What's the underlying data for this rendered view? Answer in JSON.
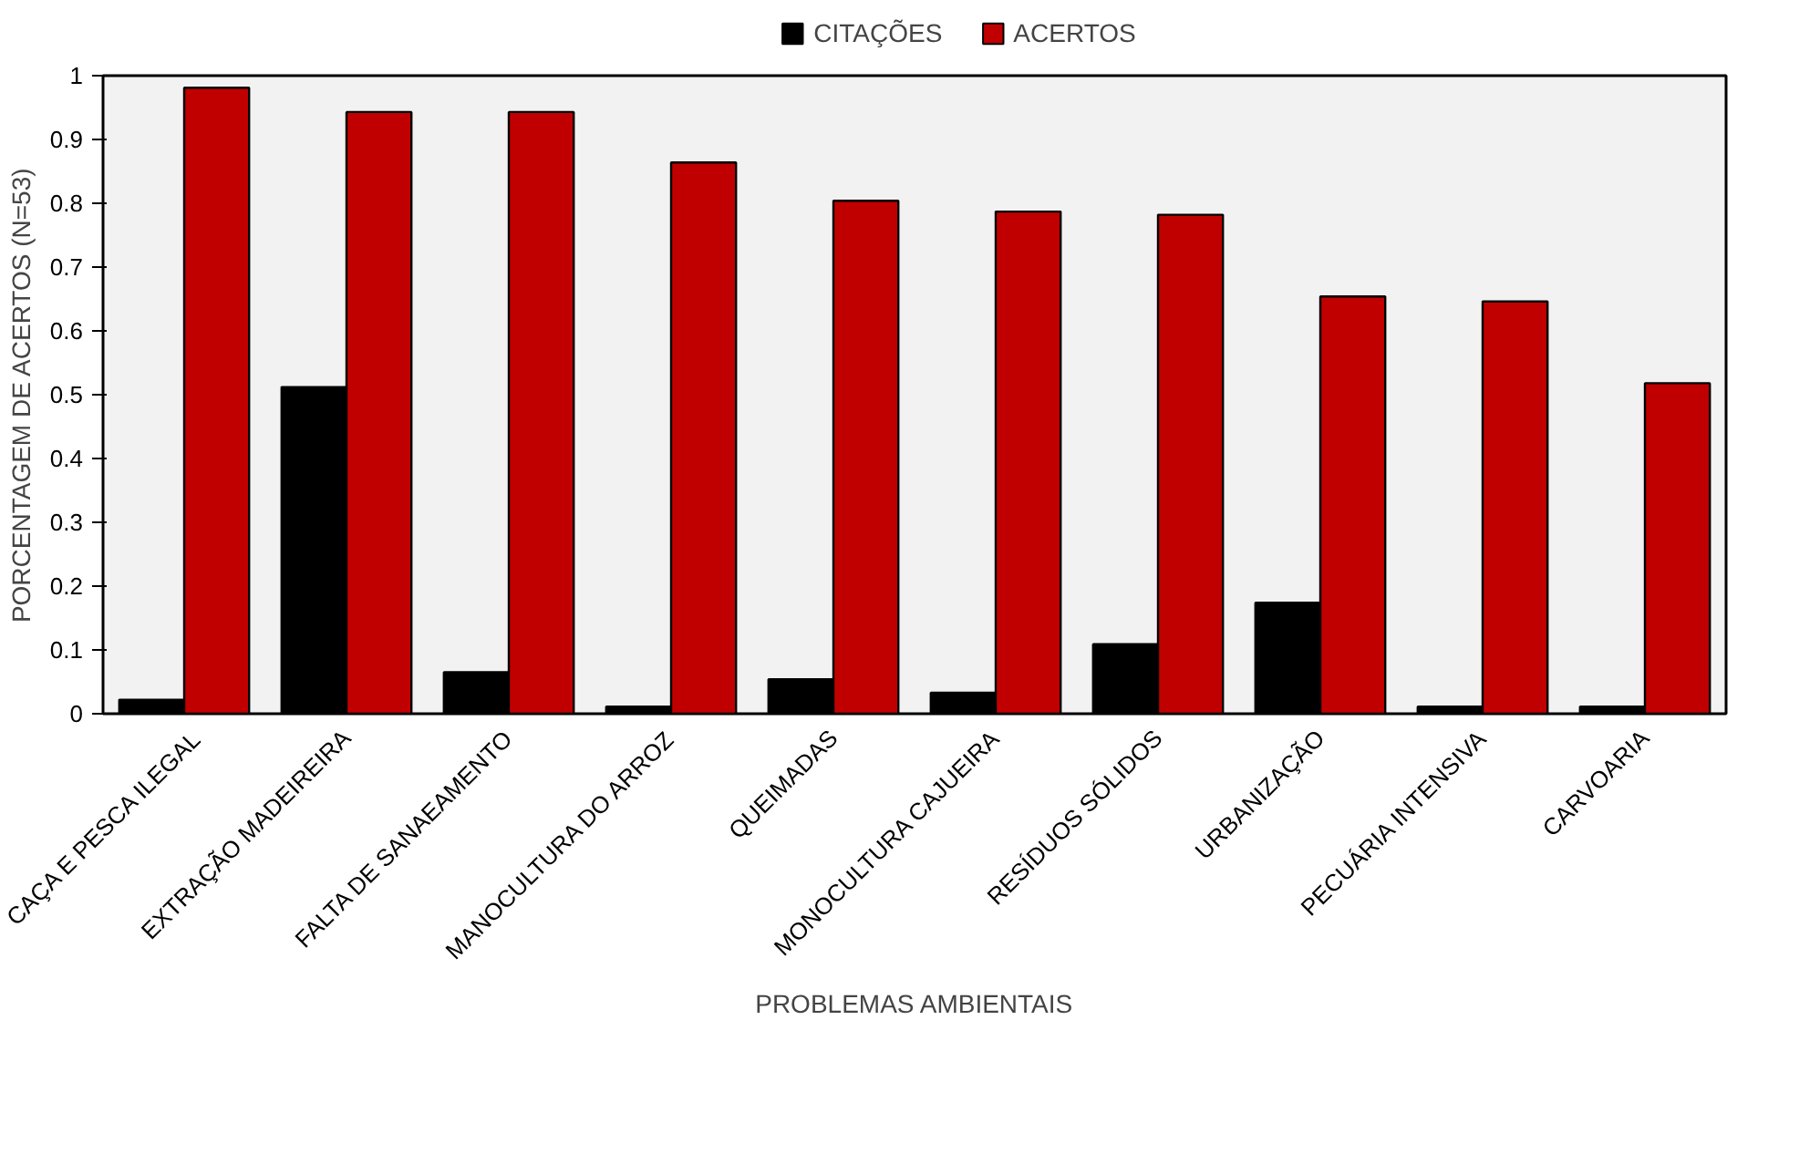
{
  "chart_data": {
    "type": "bar",
    "xlabel": "PROBLEMAS AMBIENTAIS",
    "ylabel": "PORCENTAGEM DE ACERTOS (N=53)",
    "categories": [
      "CAÇA E PESCA ILEGAL",
      "EXTRAÇÃO MADEIREIRA",
      "FALTA DE SANAEAMENTO",
      "MANOCULTURA DO ARROZ",
      "QUEIMADAS",
      "MONOCULTURA CAJUEIRA",
      "RESÍDUOS SÓLIDOS",
      "URBANIZAÇÃO",
      "PECUÁRIA INTENSIVA",
      "CARVOARIA"
    ],
    "series": [
      {
        "name": "CITAÇÕES",
        "color": "#000000",
        "values": [
          0.022,
          0.512,
          0.065,
          0.011,
          0.054,
          0.033,
          0.109,
          0.174,
          0.011,
          0.011
        ]
      },
      {
        "name": "ACERTOS",
        "color": "#c00000",
        "values": [
          0.981,
          0.943,
          0.943,
          0.864,
          0.804,
          0.787,
          0.782,
          0.654,
          0.646,
          0.518
        ]
      }
    ],
    "ylim": [
      0,
      1
    ],
    "yticks": [
      0,
      0.1,
      0.2,
      0.3,
      0.4,
      0.5,
      0.6,
      0.7,
      0.8,
      0.9,
      1
    ],
    "grid": false,
    "legend": "top"
  }
}
